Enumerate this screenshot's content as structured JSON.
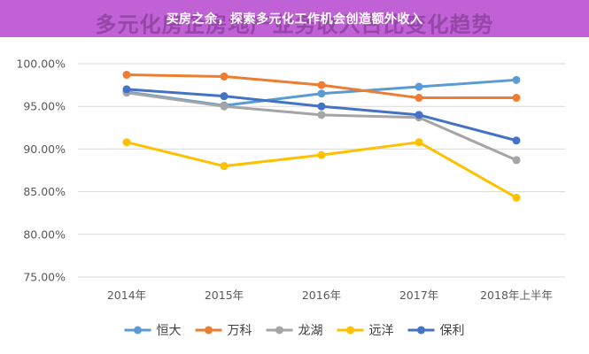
{
  "headline": "买房之余，探索多元化工作机会创造额外收入",
  "ghost_title": "多元化房企房地产业务收入占比变化趋势",
  "chart_data": {
    "type": "line",
    "title": "多元化房企房地产业务收入占比变化趋势",
    "categories": [
      "2014年",
      "2015年",
      "2016年",
      "2017年",
      "2018年上半年"
    ],
    "ylim": [
      0.75,
      1.0
    ],
    "yticks": [
      0.75,
      0.8,
      0.85,
      0.9,
      0.95,
      1.0
    ],
    "ytick_labels": [
      "75.00%",
      "80.00%",
      "85.00%",
      "90.00%",
      "95.00%",
      "100.00%"
    ],
    "grid": true,
    "legend_position": "bottom",
    "series": [
      {
        "name": "恒大",
        "color": "#5b9bd5",
        "values": [
          0.967,
          0.951,
          0.965,
          0.973,
          0.981
        ]
      },
      {
        "name": "万科",
        "color": "#ed7d31",
        "values": [
          0.987,
          0.985,
          0.975,
          0.96,
          0.96
        ]
      },
      {
        "name": "龙湖",
        "color": "#a5a5a5",
        "values": [
          0.966,
          0.95,
          0.94,
          0.937,
          0.887
        ]
      },
      {
        "name": "远洋",
        "color": "#ffc000",
        "values": [
          0.908,
          0.88,
          0.893,
          0.908,
          0.843
        ]
      },
      {
        "name": "保利",
        "color": "#4472c4",
        "values": [
          0.97,
          0.962,
          0.95,
          0.94,
          0.91
        ]
      }
    ]
  }
}
